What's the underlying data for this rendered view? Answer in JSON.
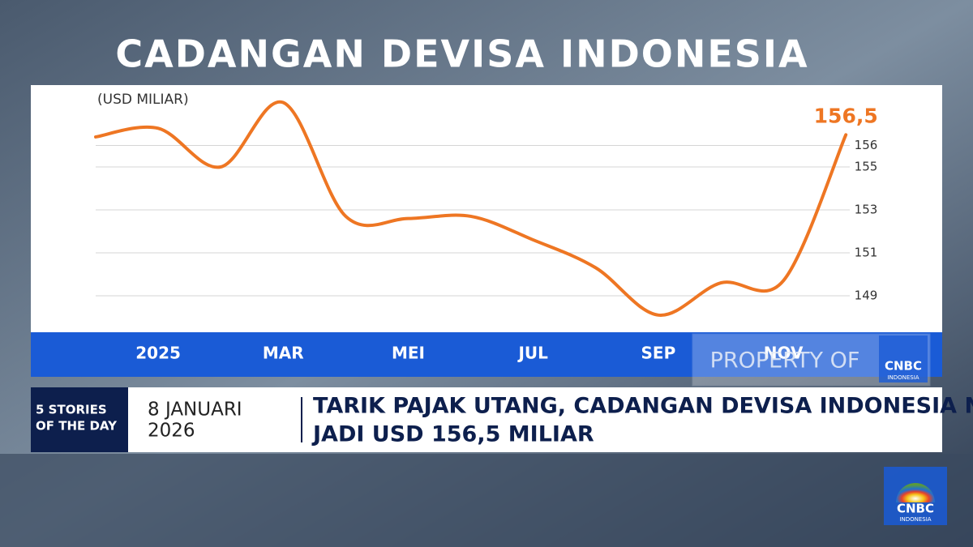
{
  "chart_data": {
    "type": "line",
    "title": "CADANGAN DEVISA INDONESIA",
    "y_label": "(USD MILIAR)",
    "categories": [
      null,
      "2025",
      null,
      "MAR",
      null,
      "MEI",
      null,
      "JUL",
      null,
      "SEP",
      null,
      "NOV",
      null
    ],
    "values": [
      156.4,
      156.8,
      155.0,
      158.0,
      152.7,
      152.6,
      152.7,
      151.6,
      150.3,
      148.1,
      149.6,
      149.7,
      156.5
    ],
    "value_labels": [
      null,
      null,
      null,
      null,
      null,
      null,
      null,
      null,
      null,
      null,
      null,
      null,
      "156,5"
    ],
    "color": "#ee7623",
    "ylim": [
      147.3,
      158.7
    ],
    "yticks": [
      149,
      151,
      153,
      155,
      156
    ],
    "grid": true
  },
  "watermark": {
    "text": "PROPERTY OF",
    "logo": "CNBC",
    "logo_sub": "INDONESIA"
  },
  "ticker": {
    "section": [
      "5 STORIES",
      "OF THE DAY"
    ],
    "date": [
      "8 JANUARI",
      "2026"
    ],
    "headline": [
      "TARIK PAJAK UTANG, CADANGAN DEVISA INDONESIA NAIK",
      "JADI USD 156,5 MILIAR"
    ]
  },
  "logo": {
    "name": "CNBC",
    "sub": "INDONESIA"
  }
}
